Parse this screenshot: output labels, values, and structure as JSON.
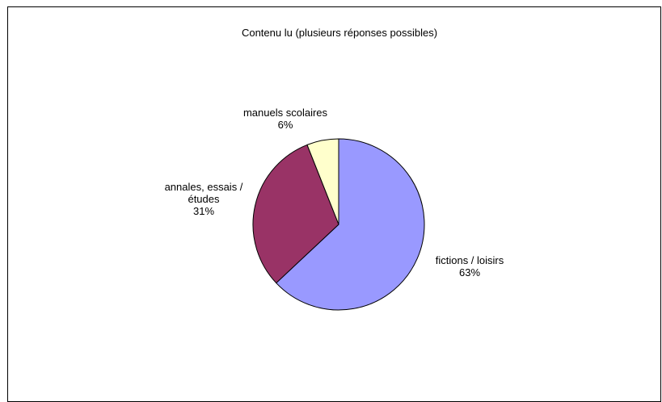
{
  "chart_data": {
    "type": "pie",
    "title": "Contenu lu (plusieurs réponses possibles)",
    "slices": [
      {
        "label_lines": [
          "fictions / loisirs"
        ],
        "value": 63,
        "value_label": "63%",
        "color": "#9999ff"
      },
      {
        "label_lines": [
          "annales, essais /",
          "études"
        ],
        "value": 31,
        "value_label": "31%",
        "color": "#993366"
      },
      {
        "label_lines": [
          "manuels scolaires"
        ],
        "value": 6,
        "value_label": "6%",
        "color": "#ffffcc"
      }
    ],
    "legend": "none"
  }
}
